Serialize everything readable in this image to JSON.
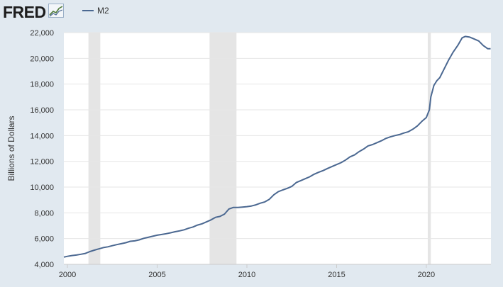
{
  "header": {
    "logo_text": "FRED",
    "logo_icon": "fred-chart-icon"
  },
  "legend": {
    "series_name": "M2",
    "color": "#4b6891"
  },
  "chart_data": {
    "type": "line",
    "ylabel": "Billions of Dollars",
    "xlabel": "",
    "ylim": [
      4000,
      22000
    ],
    "xlim": [
      1999.8,
      2023.6
    ],
    "y_ticks": [
      {
        "value": 4000,
        "label": "4,000"
      },
      {
        "value": 6000,
        "label": "6,000"
      },
      {
        "value": 8000,
        "label": "8,000"
      },
      {
        "value": 10000,
        "label": "10,000"
      },
      {
        "value": 12000,
        "label": "12,000"
      },
      {
        "value": 14000,
        "label": "14,000"
      },
      {
        "value": 16000,
        "label": "16,000"
      },
      {
        "value": 18000,
        "label": "18,000"
      },
      {
        "value": 20000,
        "label": "20,000"
      },
      {
        "value": 22000,
        "label": "22,000"
      }
    ],
    "x_ticks": [
      {
        "value": 2000,
        "label": "2000"
      },
      {
        "value": 2005,
        "label": "2005"
      },
      {
        "value": 2010,
        "label": "2010"
      },
      {
        "value": 2015,
        "label": "2015"
      },
      {
        "value": 2020,
        "label": "2020"
      }
    ],
    "recessions": [
      {
        "start": 2001.17,
        "end": 2001.83
      },
      {
        "start": 2007.92,
        "end": 2009.42
      },
      {
        "start": 2020.08,
        "end": 2020.25
      }
    ],
    "grid": true,
    "series": [
      {
        "name": "M2",
        "color": "#4b6891",
        "points": [
          [
            1999.8,
            4560
          ],
          [
            2000.0,
            4620
          ],
          [
            2000.25,
            4680
          ],
          [
            2000.5,
            4720
          ],
          [
            2000.75,
            4780
          ],
          [
            2001.0,
            4850
          ],
          [
            2001.25,
            4990
          ],
          [
            2001.5,
            5100
          ],
          [
            2001.75,
            5200
          ],
          [
            2002.0,
            5300
          ],
          [
            2002.25,
            5360
          ],
          [
            2002.5,
            5450
          ],
          [
            2002.75,
            5530
          ],
          [
            2003.0,
            5600
          ],
          [
            2003.25,
            5680
          ],
          [
            2003.5,
            5790
          ],
          [
            2003.75,
            5820
          ],
          [
            2004.0,
            5900
          ],
          [
            2004.25,
            6020
          ],
          [
            2004.5,
            6100
          ],
          [
            2004.75,
            6180
          ],
          [
            2005.0,
            6260
          ],
          [
            2005.25,
            6320
          ],
          [
            2005.5,
            6380
          ],
          [
            2005.75,
            6450
          ],
          [
            2006.0,
            6530
          ],
          [
            2006.25,
            6600
          ],
          [
            2006.5,
            6680
          ],
          [
            2006.75,
            6800
          ],
          [
            2007.0,
            6900
          ],
          [
            2007.25,
            7050
          ],
          [
            2007.5,
            7150
          ],
          [
            2007.75,
            7300
          ],
          [
            2008.0,
            7450
          ],
          [
            2008.25,
            7650
          ],
          [
            2008.5,
            7720
          ],
          [
            2008.75,
            7900
          ],
          [
            2009.0,
            8300
          ],
          [
            2009.25,
            8420
          ],
          [
            2009.5,
            8420
          ],
          [
            2009.75,
            8450
          ],
          [
            2010.0,
            8480
          ],
          [
            2010.25,
            8530
          ],
          [
            2010.5,
            8620
          ],
          [
            2010.75,
            8750
          ],
          [
            2011.0,
            8850
          ],
          [
            2011.25,
            9050
          ],
          [
            2011.5,
            9400
          ],
          [
            2011.75,
            9650
          ],
          [
            2012.0,
            9780
          ],
          [
            2012.25,
            9900
          ],
          [
            2012.5,
            10050
          ],
          [
            2012.75,
            10350
          ],
          [
            2013.0,
            10500
          ],
          [
            2013.25,
            10650
          ],
          [
            2013.5,
            10800
          ],
          [
            2013.75,
            11000
          ],
          [
            2014.0,
            11150
          ],
          [
            2014.25,
            11280
          ],
          [
            2014.5,
            11450
          ],
          [
            2014.75,
            11600
          ],
          [
            2015.0,
            11750
          ],
          [
            2015.25,
            11900
          ],
          [
            2015.5,
            12100
          ],
          [
            2015.75,
            12350
          ],
          [
            2016.0,
            12500
          ],
          [
            2016.25,
            12750
          ],
          [
            2016.5,
            12950
          ],
          [
            2016.75,
            13200
          ],
          [
            2017.0,
            13300
          ],
          [
            2017.25,
            13450
          ],
          [
            2017.5,
            13600
          ],
          [
            2017.75,
            13780
          ],
          [
            2018.0,
            13900
          ],
          [
            2018.25,
            14000
          ],
          [
            2018.5,
            14080
          ],
          [
            2018.75,
            14200
          ],
          [
            2019.0,
            14300
          ],
          [
            2019.25,
            14500
          ],
          [
            2019.5,
            14750
          ],
          [
            2019.75,
            15100
          ],
          [
            2020.0,
            15400
          ],
          [
            2020.17,
            16000
          ],
          [
            2020.25,
            17000
          ],
          [
            2020.42,
            17900
          ],
          [
            2020.58,
            18250
          ],
          [
            2020.75,
            18500
          ],
          [
            2021.0,
            19200
          ],
          [
            2021.25,
            19900
          ],
          [
            2021.5,
            20500
          ],
          [
            2021.75,
            21000
          ],
          [
            2022.0,
            21600
          ],
          [
            2022.17,
            21700
          ],
          [
            2022.42,
            21650
          ],
          [
            2022.67,
            21500
          ],
          [
            2022.92,
            21350
          ],
          [
            2023.17,
            21000
          ],
          [
            2023.42,
            20750
          ],
          [
            2023.58,
            20750
          ]
        ]
      }
    ]
  }
}
